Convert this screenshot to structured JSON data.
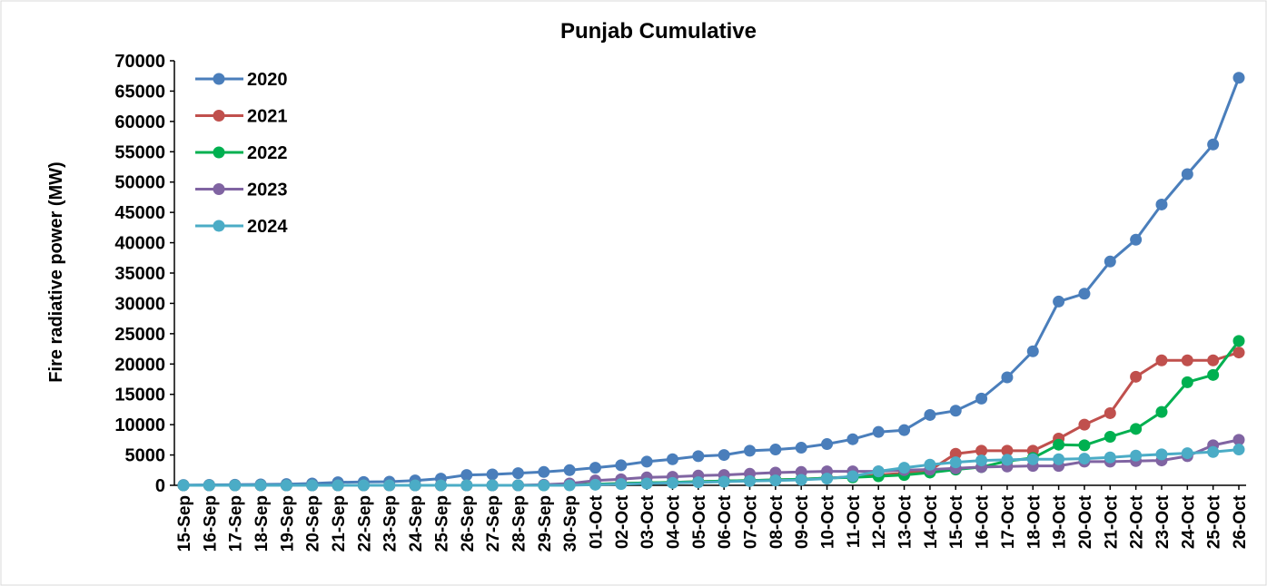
{
  "chart_data": {
    "type": "line",
    "title": "Punjab Cumulative",
    "xlabel": "",
    "ylabel": "Fire radiative power (MW)",
    "ylim": [
      0,
      70000
    ],
    "yticks": [
      0,
      5000,
      10000,
      15000,
      20000,
      25000,
      30000,
      35000,
      40000,
      45000,
      50000,
      55000,
      60000,
      65000,
      70000
    ],
    "grid": false,
    "legend": "top-left",
    "categories": [
      "15-Sep",
      "16-Sep",
      "17-Sep",
      "18-Sep",
      "19-Sep",
      "20-Sep",
      "21-Sep",
      "22-Sep",
      "23-Sep",
      "24-Sep",
      "25-Sep",
      "26-Sep",
      "27-Sep",
      "28-Sep",
      "29-Sep",
      "30-Sep",
      "01-Oct",
      "02-Oct",
      "03-Oct",
      "04-Oct",
      "05-Oct",
      "06-Oct",
      "07-Oct",
      "08-Oct",
      "09-Oct",
      "10-Oct",
      "11-Oct",
      "12-Oct",
      "13-Oct",
      "14-Oct",
      "15-Oct",
      "16-Oct",
      "17-Oct",
      "18-Oct",
      "19-Oct",
      "20-Oct",
      "21-Oct",
      "22-Oct",
      "23-Oct",
      "24-Oct",
      "25-Oct",
      "26-Oct"
    ],
    "series": [
      {
        "name": "2020",
        "color": "#4a7ebb",
        "values": [
          50,
          80,
          100,
          150,
          200,
          300,
          500,
          550,
          600,
          800,
          1100,
          1700,
          1800,
          2000,
          2200,
          2500,
          2900,
          3300,
          3900,
          4300,
          4800,
          5000,
          5700,
          5900,
          6200,
          6800,
          7600,
          8800,
          9100,
          11600,
          12300,
          14300,
          17800,
          22100,
          30300,
          31600,
          36900,
          40500,
          46300,
          51300,
          56200,
          67200
        ]
      },
      {
        "name": "2021",
        "color": "#c0504d",
        "values": [
          0,
          0,
          0,
          0,
          0,
          0,
          0,
          0,
          0,
          0,
          0,
          0,
          0,
          0,
          50,
          100,
          200,
          300,
          400,
          500,
          600,
          700,
          800,
          900,
          1000,
          1200,
          1400,
          1700,
          2000,
          2500,
          5200,
          5700,
          5700,
          5700,
          7700,
          10000,
          11900,
          17900,
          20600,
          20600,
          20600,
          21900
        ]
      },
      {
        "name": "2022",
        "color": "#00b050",
        "values": [
          0,
          0,
          0,
          0,
          0,
          0,
          0,
          0,
          0,
          0,
          0,
          0,
          0,
          0,
          0,
          100,
          200,
          300,
          400,
          500,
          600,
          700,
          800,
          900,
          1000,
          1200,
          1300,
          1500,
          1700,
          2100,
          2600,
          3000,
          4000,
          4500,
          6700,
          6600,
          8000,
          9300,
          12100,
          17000,
          18200,
          23800
        ]
      },
      {
        "name": "2023",
        "color": "#8064a2",
        "values": [
          0,
          0,
          0,
          0,
          0,
          0,
          0,
          0,
          0,
          0,
          0,
          0,
          0,
          0,
          100,
          300,
          800,
          1000,
          1300,
          1400,
          1600,
          1700,
          1900,
          2100,
          2200,
          2300,
          2300,
          2300,
          2500,
          2600,
          2800,
          3000,
          3100,
          3200,
          3200,
          3900,
          3900,
          4000,
          4100,
          4800,
          6600,
          7500
        ]
      },
      {
        "name": "2024",
        "color": "#4bacc6",
        "values": [
          0,
          0,
          0,
          0,
          0,
          0,
          0,
          0,
          0,
          0,
          0,
          0,
          0,
          0,
          0,
          0,
          100,
          200,
          300,
          400,
          500,
          600,
          700,
          800,
          900,
          1100,
          1500,
          2300,
          2900,
          3400,
          3800,
          4100,
          4200,
          4300,
          4300,
          4400,
          4600,
          4900,
          5100,
          5300,
          5500,
          5900
        ]
      }
    ]
  }
}
